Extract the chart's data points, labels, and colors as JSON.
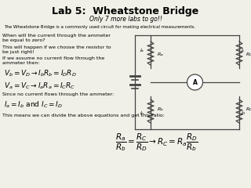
{
  "title": "Lab 5:  Wheatstone Bridge",
  "subtitle": "Only 7 more labs to go!!",
  "intro": "The Wheatstone Bridge is a commonly used circuit for making electrical measurements.",
  "text1": "When will the current through the ammeter\nbe equal to zero?",
  "text2": "This will happen if we choose the resistor to\nbe just right!",
  "text3": "If we assume no current flow through the\nammeter then:",
  "eq1": "$V_b = V_D \\rightarrow I_b R_b = I_D R_D$",
  "eq2": "$V_a = V_C \\rightarrow I_a R_a = I_C R_C$",
  "text4": "Since no current flows through the ammeter:",
  "eq3": "$I_a = I_b$ and $I_C = I_D$",
  "text5": "This means we can divide the above equations and get this ratio:",
  "eq4": "$\\dfrac{R_a}{R_b} = \\dfrac{R_C}{R_D} \\rightarrow R_C = R_a \\dfrac{R_D}{R_b}$",
  "bg_color": "#f0f0e8",
  "text_color": "#000000",
  "title_fontsize": 9,
  "subtitle_fontsize": 5.5,
  "body_fontsize": 4.5,
  "eq_fontsize": 6.5
}
